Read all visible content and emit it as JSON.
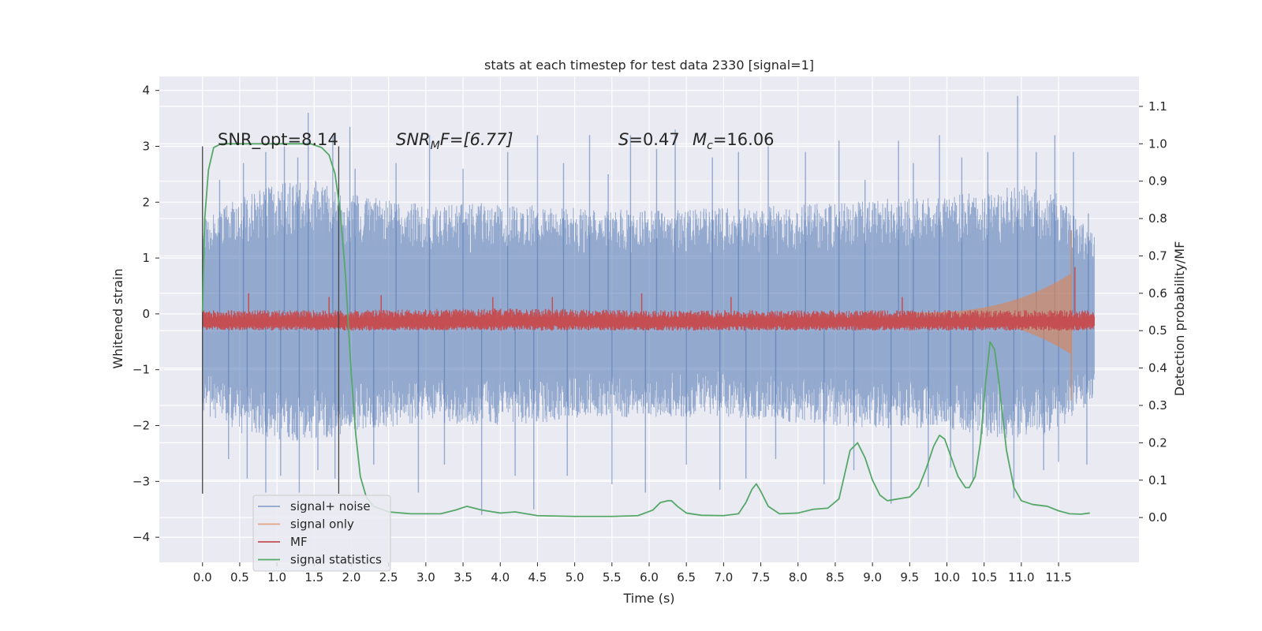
{
  "chart_data": {
    "type": "line",
    "title": "stats at each timestep for test data 2330 [signal=1]",
    "xlabel": "Time (s)",
    "ylabel_left": "Whitened strain",
    "ylabel_right": "Detection probability/MF",
    "xlim": [
      -0.58,
      12.58
    ],
    "ylim_left": [
      -4.45,
      4.25
    ],
    "ylim_right": [
      -0.12,
      1.18
    ],
    "x_ticks": [
      0.0,
      0.5,
      1.0,
      1.5,
      2.0,
      2.5,
      3.0,
      3.5,
      4.0,
      4.5,
      5.0,
      5.5,
      6.0,
      6.5,
      7.0,
      7.5,
      8.0,
      8.5,
      9.0,
      9.5,
      10.0,
      10.5,
      11.0,
      11.5
    ],
    "x_tick_labels": [
      "0.0",
      "0.5",
      "1.0",
      "1.5",
      "2.0",
      "2.5",
      "3.0",
      "3.5",
      "4.0",
      "4.5",
      "5.0",
      "5.5",
      "6.0",
      "6.5",
      "7.0",
      "7.5",
      "8.0",
      "8.5",
      "9.0",
      "9.5",
      "10.0",
      "10.5",
      "11.0",
      "11.5"
    ],
    "y_left_ticks": [
      -4,
      -3,
      -2,
      -1,
      0,
      1,
      2,
      3,
      4
    ],
    "y_left_tick_labels": [
      "−4",
      "−3",
      "−2",
      "−1",
      "0",
      "1",
      "2",
      "3",
      "4"
    ],
    "y_right_ticks": [
      0.0,
      0.1,
      0.2,
      0.3,
      0.4,
      0.5,
      0.6,
      0.7,
      0.8,
      0.9,
      1.0,
      1.1
    ],
    "y_right_tick_labels": [
      "0.0",
      "0.1",
      "0.2",
      "0.3",
      "0.4",
      "0.5",
      "0.6",
      "0.7",
      "0.8",
      "0.9",
      "1.0",
      "1.1"
    ],
    "grid": true,
    "legend_position": "lower-left",
    "annotations": {
      "snr_opt": "SNR_opt=8.14",
      "snr_mf_base": "SNR",
      "snr_mf_sub": "M",
      "snr_mf_rest": "F=[6.77]",
      "s_name": "S",
      "s_value": "=0.47",
      "mc_base": "M",
      "mc_sub": "c",
      "mc_value": "=16.06"
    },
    "vertical_markers_x": [
      0.0,
      1.83
    ],
    "vertical_marker_range_left": [
      -3.22,
      3.0
    ],
    "series": [
      {
        "name": "signal+ noise",
        "axis": "left",
        "color": "#4c72b0",
        "band_profile": {
          "t": [
            0.0,
            0.5,
            1.0,
            1.5,
            2.0,
            3.0,
            4.0,
            5.0,
            6.0,
            7.0,
            8.0,
            9.0,
            10.0,
            10.5,
            11.0,
            11.5,
            11.98
          ],
          "lower": [
            -1.85,
            -2.15,
            -2.25,
            -2.3,
            -2.1,
            -1.95,
            -2.0,
            -1.9,
            -1.85,
            -1.85,
            -1.95,
            -2.05,
            -2.05,
            -2.2,
            -2.25,
            -2.1,
            -1.55
          ],
          "upper": [
            1.75,
            2.15,
            2.35,
            2.4,
            2.15,
            1.95,
            2.0,
            1.9,
            1.85,
            1.9,
            1.95,
            2.05,
            2.1,
            2.2,
            2.3,
            2.15,
            1.4
          ]
        },
        "spikes_up": [
          {
            "t": 0.23,
            "v": 2.4
          },
          {
            "t": 0.55,
            "v": 2.7
          },
          {
            "t": 0.85,
            "v": 2.9
          },
          {
            "t": 1.1,
            "v": 3.0
          },
          {
            "t": 1.28,
            "v": 2.8
          },
          {
            "t": 1.42,
            "v": 3.6
          },
          {
            "t": 1.75,
            "v": 3.2
          },
          {
            "t": 1.98,
            "v": 3.35
          },
          {
            "t": 2.05,
            "v": 2.6
          },
          {
            "t": 2.6,
            "v": 2.7
          },
          {
            "t": 3.05,
            "v": 3.2
          },
          {
            "t": 3.5,
            "v": 2.6
          },
          {
            "t": 4.1,
            "v": 2.9
          },
          {
            "t": 4.5,
            "v": 3.2
          },
          {
            "t": 4.85,
            "v": 2.7
          },
          {
            "t": 5.2,
            "v": 3.2
          },
          {
            "t": 5.45,
            "v": 2.5
          },
          {
            "t": 5.75,
            "v": 3.2
          },
          {
            "t": 6.1,
            "v": 2.95
          },
          {
            "t": 6.35,
            "v": 3.3
          },
          {
            "t": 6.85,
            "v": 2.8
          },
          {
            "t": 7.2,
            "v": 2.9
          },
          {
            "t": 7.6,
            "v": 3.0
          },
          {
            "t": 8.1,
            "v": 2.9
          },
          {
            "t": 8.55,
            "v": 3.1
          },
          {
            "t": 8.9,
            "v": 2.4
          },
          {
            "t": 9.35,
            "v": 3.1
          },
          {
            "t": 9.55,
            "v": 2.7
          },
          {
            "t": 9.9,
            "v": 3.2
          },
          {
            "t": 10.2,
            "v": 2.8
          },
          {
            "t": 10.55,
            "v": 2.9
          },
          {
            "t": 10.95,
            "v": 3.9
          },
          {
            "t": 11.2,
            "v": 2.9
          },
          {
            "t": 11.45,
            "v": 3.2
          },
          {
            "t": 11.7,
            "v": 2.9
          },
          {
            "t": 11.9,
            "v": 1.8
          }
        ],
        "spikes_down": [
          {
            "t": 0.35,
            "v": -2.6
          },
          {
            "t": 0.6,
            "v": -2.95
          },
          {
            "t": 0.85,
            "v": -3.2
          },
          {
            "t": 1.05,
            "v": -2.9
          },
          {
            "t": 1.3,
            "v": -3.2
          },
          {
            "t": 1.55,
            "v": -2.8
          },
          {
            "t": 1.78,
            "v": -2.95
          },
          {
            "t": 2.3,
            "v": -2.7
          },
          {
            "t": 2.9,
            "v": -3.2
          },
          {
            "t": 3.25,
            "v": -2.7
          },
          {
            "t": 3.75,
            "v": -3.6
          },
          {
            "t": 4.2,
            "v": -2.9
          },
          {
            "t": 4.45,
            "v": -3.5
          },
          {
            "t": 4.9,
            "v": -2.9
          },
          {
            "t": 5.5,
            "v": -3.05
          },
          {
            "t": 5.95,
            "v": -3.2
          },
          {
            "t": 6.5,
            "v": -2.7
          },
          {
            "t": 6.95,
            "v": -3.15
          },
          {
            "t": 7.3,
            "v": -2.95
          },
          {
            "t": 7.7,
            "v": -2.6
          },
          {
            "t": 8.35,
            "v": -3.05
          },
          {
            "t": 8.75,
            "v": -2.8
          },
          {
            "t": 9.25,
            "v": -3.4
          },
          {
            "t": 9.75,
            "v": -3.1
          },
          {
            "t": 10.05,
            "v": -2.75
          },
          {
            "t": 10.35,
            "v": -3.0
          },
          {
            "t": 10.9,
            "v": -3.3
          },
          {
            "t": 11.3,
            "v": -2.8
          },
          {
            "t": 11.5,
            "v": -2.65
          },
          {
            "t": 11.88,
            "v": -2.7
          }
        ]
      },
      {
        "name": "signal only",
        "axis": "left",
        "color": "#dd8452",
        "chirp": {
          "t_start": 9.5,
          "t_end": 11.67,
          "amp_start": 0.02,
          "amp_end": 0.72,
          "peak_up": 1.5,
          "peak_down": -1.55
        }
      },
      {
        "name": "MF",
        "axis": "right",
        "color": "#c44e52",
        "band_profile": {
          "t": [
            0.0,
            2.0,
            4.0,
            6.0,
            8.0,
            10.0,
            11.6,
            11.98
          ],
          "lower": [
            0.5,
            0.5,
            0.5,
            0.5,
            0.5,
            0.5,
            0.5,
            0.5
          ],
          "upper": [
            0.555,
            0.555,
            0.56,
            0.555,
            0.555,
            0.555,
            0.555,
            0.555
          ]
        },
        "spikes_up": [
          {
            "t": 0.62,
            "v": 0.6
          },
          {
            "t": 1.7,
            "v": 0.59
          },
          {
            "t": 2.4,
            "v": 0.595
          },
          {
            "t": 3.9,
            "v": 0.59
          },
          {
            "t": 4.7,
            "v": 0.59
          },
          {
            "t": 5.9,
            "v": 0.6
          },
          {
            "t": 7.1,
            "v": 0.59
          },
          {
            "t": 9.4,
            "v": 0.59
          },
          {
            "t": 11.72,
            "v": 0.67
          }
        ]
      },
      {
        "name": "signal statistics",
        "axis": "right",
        "color": "#55a868",
        "x": [
          0.0,
          0.03,
          0.08,
          0.15,
          0.25,
          0.4,
          0.6,
          0.9,
          1.2,
          1.45,
          1.6,
          1.7,
          1.78,
          1.85,
          1.92,
          2.0,
          2.06,
          2.12,
          2.2,
          2.3,
          2.5,
          2.8,
          3.2,
          3.4,
          3.55,
          3.75,
          4.0,
          4.2,
          4.5,
          5.0,
          5.5,
          5.85,
          6.05,
          6.15,
          6.25,
          6.3,
          6.38,
          6.5,
          6.7,
          7.0,
          7.2,
          7.3,
          7.38,
          7.44,
          7.5,
          7.6,
          7.75,
          8.0,
          8.2,
          8.4,
          8.55,
          8.62,
          8.7,
          8.8,
          8.9,
          9.0,
          9.1,
          9.2,
          9.35,
          9.5,
          9.62,
          9.72,
          9.82,
          9.9,
          9.97,
          10.05,
          10.15,
          10.25,
          10.3,
          10.38,
          10.45,
          10.52,
          10.58,
          10.64,
          10.7,
          10.8,
          10.9,
          11.0,
          11.15,
          11.35,
          11.5,
          11.65,
          11.8,
          11.92
        ],
        "values": [
          0.55,
          0.8,
          0.93,
          0.99,
          1.0,
          1.0,
          1.0,
          1.0,
          1.0,
          1.0,
          0.99,
          0.97,
          0.92,
          0.82,
          0.65,
          0.38,
          0.22,
          0.11,
          0.055,
          0.03,
          0.015,
          0.01,
          0.01,
          0.02,
          0.03,
          0.02,
          0.012,
          0.015,
          0.005,
          0.003,
          0.003,
          0.005,
          0.02,
          0.04,
          0.045,
          0.045,
          0.03,
          0.012,
          0.006,
          0.005,
          0.01,
          0.04,
          0.075,
          0.09,
          0.07,
          0.03,
          0.01,
          0.012,
          0.022,
          0.025,
          0.05,
          0.11,
          0.18,
          0.2,
          0.16,
          0.1,
          0.06,
          0.045,
          0.05,
          0.055,
          0.08,
          0.13,
          0.19,
          0.22,
          0.21,
          0.165,
          0.11,
          0.08,
          0.08,
          0.11,
          0.2,
          0.36,
          0.47,
          0.45,
          0.36,
          0.18,
          0.08,
          0.045,
          0.035,
          0.03,
          0.018,
          0.01,
          0.009,
          0.012
        ]
      }
    ]
  }
}
